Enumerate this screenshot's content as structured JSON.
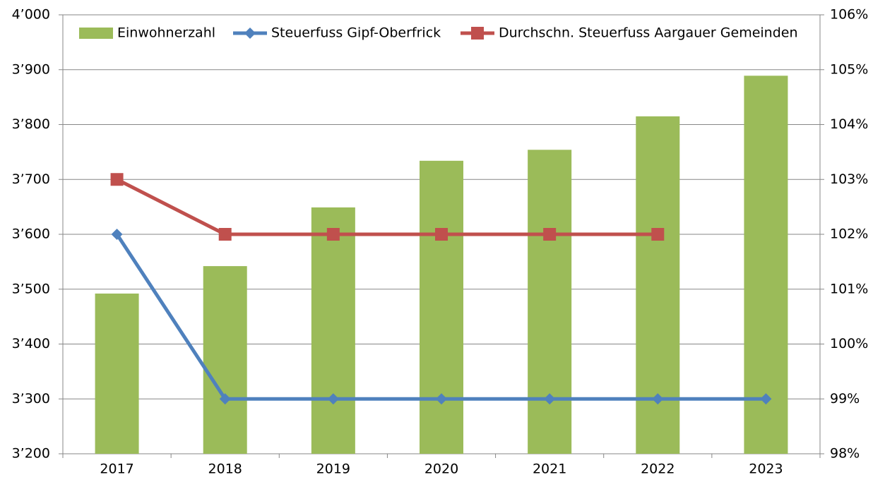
{
  "chart_data": {
    "type": "bar_line",
    "categories": [
      "2017",
      "2018",
      "2019",
      "2020",
      "2021",
      "2022",
      "2023"
    ],
    "series": [
      {
        "name": "Einwohnerzahl",
        "type": "bar",
        "color": "#9bbb59",
        "axis": "y",
        "values": [
          3492,
          3542,
          3649,
          3734,
          3754,
          3815,
          3889
        ]
      },
      {
        "name": "Steuerfuss Gipf-Oberfrick",
        "type": "line",
        "marker": "diamond",
        "color": "#4f81bd",
        "axis": "y2",
        "values": [
          102,
          99,
          99,
          99,
          99,
          99,
          99
        ]
      },
      {
        "name": "Durchschn. Steuerfuss Aargauer Gemeinden",
        "type": "line",
        "marker": "square",
        "color": "#c0504d",
        "axis": "y2",
        "values": [
          103,
          102,
          102,
          102,
          102,
          102,
          null
        ]
      }
    ],
    "ylim": [
      3200,
      4000
    ],
    "yticks": [
      {
        "value": 3200,
        "label": "3’200"
      },
      {
        "value": 3300,
        "label": "3’300"
      },
      {
        "value": 3400,
        "label": "3’400"
      },
      {
        "value": 3500,
        "label": "3’500"
      },
      {
        "value": 3600,
        "label": "3’600"
      },
      {
        "value": 3700,
        "label": "3’700"
      },
      {
        "value": 3800,
        "label": "3’800"
      },
      {
        "value": 3900,
        "label": "3’900"
      },
      {
        "value": 4000,
        "label": "4’000"
      }
    ],
    "y2lim": [
      98,
      106
    ],
    "y2ticks": [
      {
        "value": 98,
        "label": "98%"
      },
      {
        "value": 99,
        "label": "99%"
      },
      {
        "value": 100,
        "label": "100%"
      },
      {
        "value": 101,
        "label": "101%"
      },
      {
        "value": 102,
        "label": "102%"
      },
      {
        "value": 103,
        "label": "103%"
      },
      {
        "value": 104,
        "label": "104%"
      },
      {
        "value": 105,
        "label": "105%"
      },
      {
        "value": 106,
        "label": "106%"
      }
    ],
    "grid": true,
    "legend": "top"
  }
}
